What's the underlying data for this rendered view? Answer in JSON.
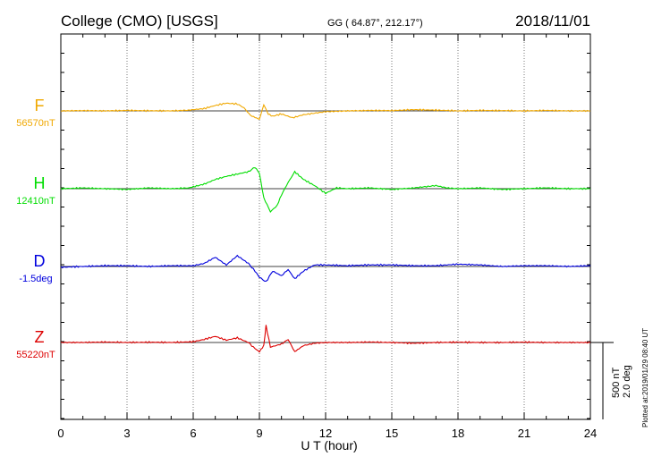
{
  "header": {
    "station": "College (CMO)  [USGS]",
    "coords": "GG ( 64.87°, 212.17°)",
    "date": "2018/11/01"
  },
  "footnote": "Plotted at:2019/01/29 08:40 UT",
  "scale": {
    "nt": "500 nT",
    "deg": "2.0 deg"
  },
  "chart_data": {
    "type": "line",
    "xlabel": "U T (hour)",
    "xlim": [
      0,
      24
    ],
    "xticks": [
      "0",
      "3",
      "6",
      "9",
      "12",
      "15",
      "18",
      "21",
      "24"
    ],
    "grid": "dotted vertical lines at 3 h intervals",
    "scale_bar": "500 nT / 2.0 deg",
    "series": [
      {
        "name": "F",
        "baseline": "56570nT",
        "color": "#f0a800",
        "points": [
          [
            0,
            0
          ],
          [
            1,
            2
          ],
          [
            2,
            0
          ],
          [
            3,
            3
          ],
          [
            4,
            1
          ],
          [
            5,
            0
          ],
          [
            5.8,
            5
          ],
          [
            6.5,
            15
          ],
          [
            7,
            35
          ],
          [
            7.5,
            50
          ],
          [
            8,
            45
          ],
          [
            8.3,
            20
          ],
          [
            8.6,
            -30
          ],
          [
            9,
            -55
          ],
          [
            9.2,
            40
          ],
          [
            9.4,
            -20
          ],
          [
            9.6,
            -35
          ],
          [
            10,
            -20
          ],
          [
            10.5,
            -45
          ],
          [
            11,
            -25
          ],
          [
            11.5,
            -15
          ],
          [
            12,
            -5
          ],
          [
            13,
            0
          ],
          [
            14,
            3
          ],
          [
            15,
            2
          ],
          [
            16,
            8
          ],
          [
            17,
            5
          ],
          [
            18,
            0
          ],
          [
            19,
            3
          ],
          [
            20,
            2
          ],
          [
            21,
            0
          ],
          [
            22,
            3
          ],
          [
            23,
            0
          ],
          [
            24,
            0
          ]
        ]
      },
      {
        "name": "H",
        "baseline": "12410nT",
        "color": "#00dd00",
        "points": [
          [
            0,
            0
          ],
          [
            1,
            5
          ],
          [
            2,
            0
          ],
          [
            3,
            -5
          ],
          [
            4,
            5
          ],
          [
            5,
            0
          ],
          [
            5.8,
            5
          ],
          [
            6.5,
            30
          ],
          [
            7,
            60
          ],
          [
            7.5,
            80
          ],
          [
            8,
            95
          ],
          [
            8.5,
            110
          ],
          [
            8.8,
            140
          ],
          [
            9,
            100
          ],
          [
            9.2,
            -60
          ],
          [
            9.5,
            -150
          ],
          [
            9.8,
            -110
          ],
          [
            10,
            -40
          ],
          [
            10.3,
            40
          ],
          [
            10.6,
            110
          ],
          [
            11,
            60
          ],
          [
            11.5,
            20
          ],
          [
            12,
            -30
          ],
          [
            12.5,
            5
          ],
          [
            13,
            0
          ],
          [
            14,
            5
          ],
          [
            15,
            -5
          ],
          [
            16,
            5
          ],
          [
            17,
            20
          ],
          [
            17.5,
            5
          ],
          [
            18,
            0
          ],
          [
            19,
            5
          ],
          [
            20,
            -5
          ],
          [
            21,
            0
          ],
          [
            22,
            5
          ],
          [
            23,
            0
          ],
          [
            24,
            0
          ]
        ]
      },
      {
        "name": "D",
        "baseline": "-1.5deg",
        "color": "#0000dd",
        "points": [
          [
            0,
            -5
          ],
          [
            1,
            0
          ],
          [
            2,
            5
          ],
          [
            3,
            5
          ],
          [
            4,
            0
          ],
          [
            5,
            5
          ],
          [
            6,
            5
          ],
          [
            6.5,
            20
          ],
          [
            7,
            60
          ],
          [
            7.5,
            10
          ],
          [
            8,
            70
          ],
          [
            8.5,
            20
          ],
          [
            8.8,
            -30
          ],
          [
            9,
            -70
          ],
          [
            9.3,
            -100
          ],
          [
            9.6,
            -30
          ],
          [
            10,
            -60
          ],
          [
            10.3,
            -20
          ],
          [
            10.6,
            -80
          ],
          [
            11,
            -30
          ],
          [
            11.5,
            10
          ],
          [
            12,
            10
          ],
          [
            13,
            5
          ],
          [
            14,
            10
          ],
          [
            15,
            10
          ],
          [
            16,
            5
          ],
          [
            17,
            5
          ],
          [
            18,
            15
          ],
          [
            19,
            10
          ],
          [
            20,
            0
          ],
          [
            21,
            5
          ],
          [
            22,
            5
          ],
          [
            23,
            0
          ],
          [
            24,
            5
          ]
        ]
      },
      {
        "name": "Z",
        "baseline": "55220nT",
        "color": "#dd0000",
        "points": [
          [
            0,
            0
          ],
          [
            1,
            0
          ],
          [
            2,
            3
          ],
          [
            3,
            0
          ],
          [
            4,
            2
          ],
          [
            5,
            0
          ],
          [
            6,
            5
          ],
          [
            6.5,
            20
          ],
          [
            7,
            40
          ],
          [
            7.5,
            15
          ],
          [
            8,
            30
          ],
          [
            8.5,
            0
          ],
          [
            8.8,
            -40
          ],
          [
            9,
            -60
          ],
          [
            9.2,
            -20
          ],
          [
            9.3,
            110
          ],
          [
            9.5,
            -30
          ],
          [
            10,
            -10
          ],
          [
            10.3,
            20
          ],
          [
            10.6,
            -60
          ],
          [
            11,
            -20
          ],
          [
            11.5,
            -5
          ],
          [
            12,
            0
          ],
          [
            13,
            0
          ],
          [
            14,
            3
          ],
          [
            15,
            0
          ],
          [
            16,
            -5
          ],
          [
            17,
            0
          ],
          [
            18,
            2
          ],
          [
            19,
            0
          ],
          [
            20,
            0
          ],
          [
            21,
            2
          ],
          [
            22,
            0
          ],
          [
            23,
            0
          ],
          [
            24,
            0
          ]
        ]
      }
    ]
  }
}
